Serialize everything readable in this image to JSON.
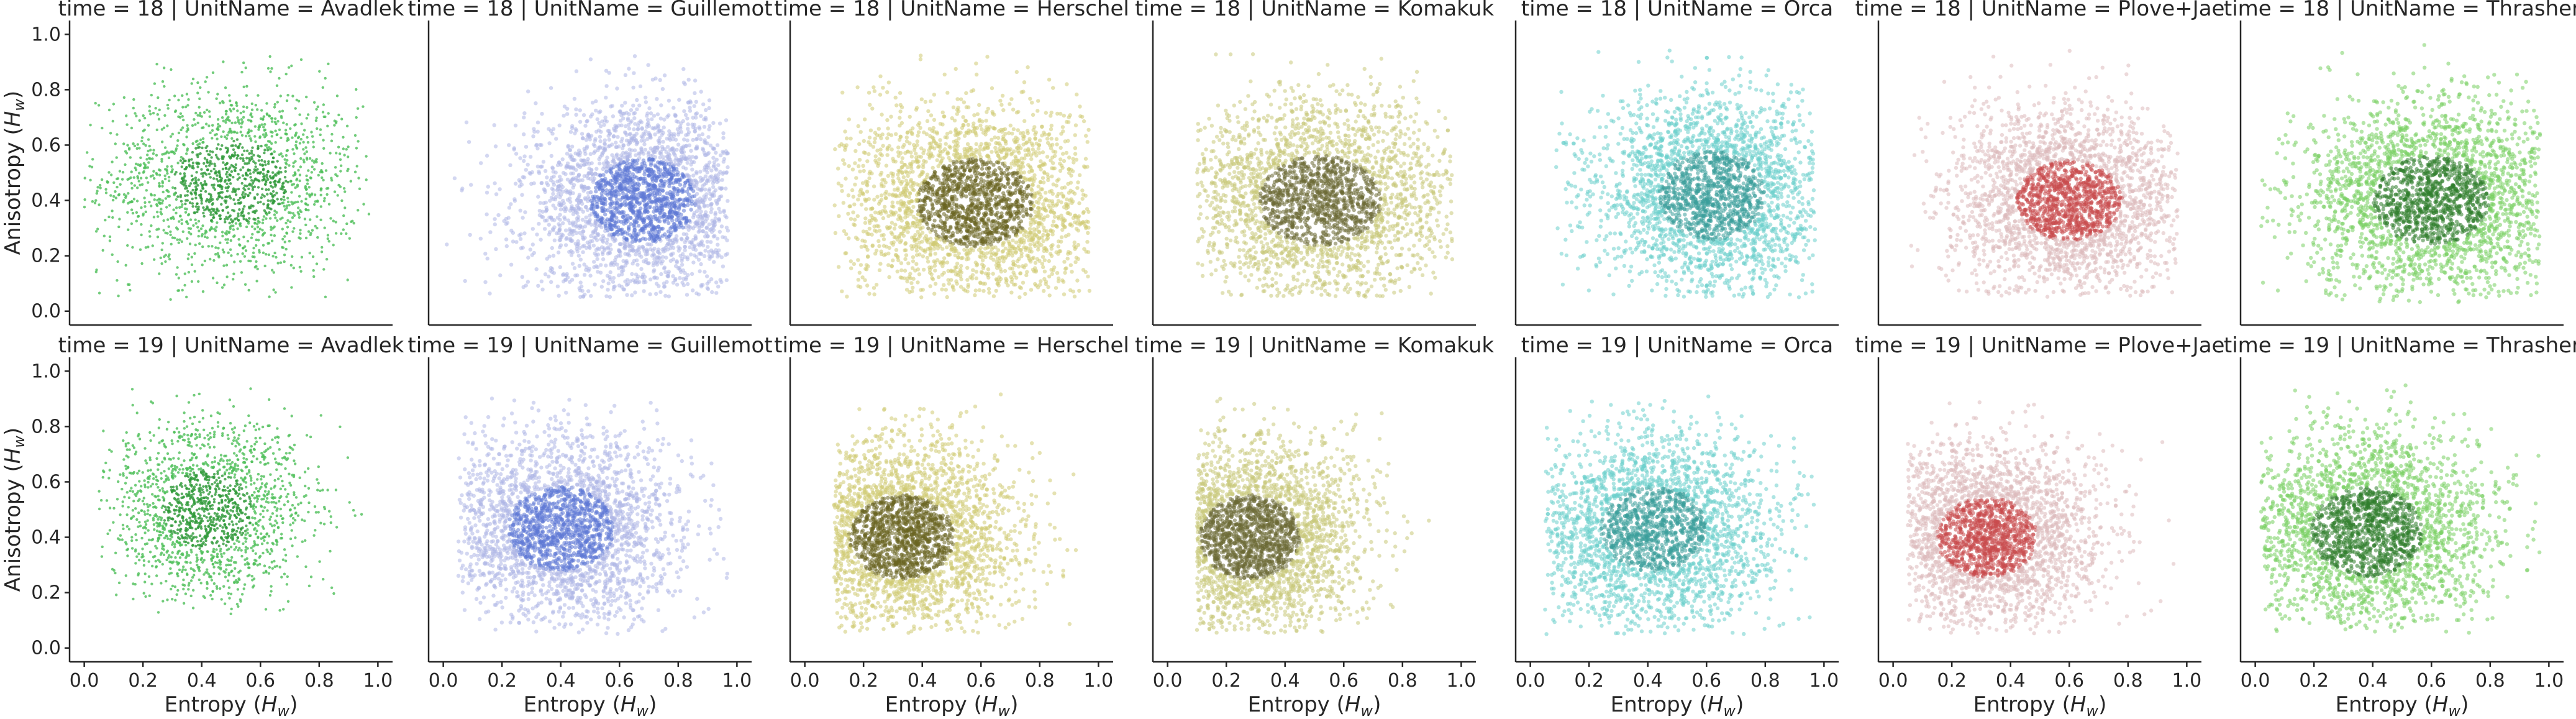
{
  "facet_grid": {
    "rows": [
      "time = 18",
      "time = 19"
    ],
    "columns": [
      "Avadlek",
      "Guillemot",
      "Herschel",
      "Komakuk",
      "Orca",
      "Plove+Jae",
      "Thrasher"
    ]
  },
  "chart_data": [
    {
      "type": "scatter",
      "title": "time = 18 | UnitName = Avadlek",
      "xlabel": "",
      "ylabel": "Anisotropy ($H_w$)",
      "xlim": [
        -0.05,
        1.05
      ],
      "ylim": [
        -0.05,
        1.05
      ],
      "xticks": [
        0.0,
        0.2,
        0.4,
        0.6,
        0.8,
        1.0
      ],
      "yticks": [
        0.0,
        0.2,
        0.4,
        0.6,
        0.8,
        1.0
      ],
      "x_tick_labels_visible": false,
      "y_tick_labels_visible": true,
      "color": "#4fbf5a",
      "dense_color": "#2f9a3a",
      "density": "sparse",
      "distribution": {
        "x_range": [
          0.0,
          0.97
        ],
        "y_range": [
          0.03,
          0.97
        ],
        "center": [
          0.5,
          0.47
        ],
        "spread": [
          0.22,
          0.17
        ]
      }
    },
    {
      "type": "scatter",
      "title": "time = 18 | UnitName = Guillemot",
      "xlabel": "",
      "ylabel": "",
      "xlim": [
        -0.05,
        1.05
      ],
      "ylim": [
        -0.05,
        1.05
      ],
      "xticks": [
        0.0,
        0.2,
        0.4,
        0.6,
        0.8,
        1.0
      ],
      "yticks": [
        0.0,
        0.2,
        0.4,
        0.6,
        0.8,
        1.0
      ],
      "x_tick_labels_visible": false,
      "y_tick_labels_visible": false,
      "color": "#aeb7e6",
      "dense_color": "#5f79d6",
      "density": "dense",
      "distribution": {
        "x_range": [
          0.0,
          0.97
        ],
        "y_range": [
          0.05,
          0.95
        ],
        "center": [
          0.68,
          0.4
        ],
        "spread": [
          0.2,
          0.17
        ]
      }
    },
    {
      "type": "scatter",
      "title": "time = 18 | UnitName = Herschel",
      "xlabel": "",
      "ylabel": "",
      "xlim": [
        -0.05,
        1.05
      ],
      "ylim": [
        -0.05,
        1.05
      ],
      "xticks": [
        0.0,
        0.2,
        0.4,
        0.6,
        0.8,
        1.0
      ],
      "yticks": [
        0.0,
        0.2,
        0.4,
        0.6,
        0.8,
        1.0
      ],
      "x_tick_labels_visible": false,
      "y_tick_labels_visible": false,
      "color": "#cfca72",
      "dense_color": "#6a6520",
      "density": "dense",
      "distribution": {
        "x_range": [
          0.1,
          0.97
        ],
        "y_range": [
          0.05,
          0.95
        ],
        "center": [
          0.58,
          0.39
        ],
        "spread": [
          0.22,
          0.18
        ]
      }
    },
    {
      "type": "scatter",
      "title": "time = 18 | UnitName = Komakuk",
      "xlabel": "",
      "ylabel": "",
      "xlim": [
        -0.05,
        1.05
      ],
      "ylim": [
        -0.05,
        1.05
      ],
      "xticks": [
        0.0,
        0.2,
        0.4,
        0.6,
        0.8,
        1.0
      ],
      "yticks": [
        0.0,
        0.2,
        0.4,
        0.6,
        0.8,
        1.0
      ],
      "x_tick_labels_visible": false,
      "y_tick_labels_visible": false,
      "color": "#c9c97a",
      "dense_color": "#6b6a35",
      "density": "dense",
      "distribution": {
        "x_range": [
          0.1,
          0.97
        ],
        "y_range": [
          0.05,
          0.95
        ],
        "center": [
          0.52,
          0.4
        ],
        "spread": [
          0.23,
          0.18
        ]
      }
    },
    {
      "type": "scatter",
      "title": "time = 18 | UnitName = Orca",
      "xlabel": "",
      "ylabel": "",
      "xlim": [
        -0.05,
        1.05
      ],
      "ylim": [
        -0.05,
        1.05
      ],
      "xticks": [
        0.0,
        0.2,
        0.4,
        0.6,
        0.8,
        1.0
      ],
      "yticks": [
        0.0,
        0.2,
        0.4,
        0.6,
        0.8,
        1.0
      ],
      "x_tick_labels_visible": false,
      "y_tick_labels_visible": false,
      "color": "#6ccfcc",
      "dense_color": "#3a9e9a",
      "density": "dense",
      "distribution": {
        "x_range": [
          0.05,
          0.97
        ],
        "y_range": [
          0.05,
          0.95
        ],
        "center": [
          0.62,
          0.42
        ],
        "spread": [
          0.2,
          0.18
        ]
      }
    },
    {
      "type": "scatter",
      "title": "time = 18 | UnitName = Plove+Jae",
      "xlabel": "",
      "ylabel": "",
      "xlim": [
        -0.05,
        1.05
      ],
      "ylim": [
        -0.05,
        1.05
      ],
      "xticks": [
        0.0,
        0.2,
        0.4,
        0.6,
        0.8,
        1.0
      ],
      "yticks": [
        0.0,
        0.2,
        0.4,
        0.6,
        0.8,
        1.0
      ],
      "x_tick_labels_visible": false,
      "y_tick_labels_visible": false,
      "color": "#dcb9bb",
      "dense_color": "#c94a4c",
      "density": "dense",
      "distribution": {
        "x_range": [
          0.05,
          0.97
        ],
        "y_range": [
          0.05,
          0.95
        ],
        "center": [
          0.6,
          0.4
        ],
        "spread": [
          0.2,
          0.16
        ]
      }
    },
    {
      "type": "scatter",
      "title": "time = 18 | UnitName = Thrasher",
      "xlabel": "",
      "ylabel": "",
      "xlim": [
        -0.05,
        1.05
      ],
      "ylim": [
        -0.05,
        1.05
      ],
      "xticks": [
        0.0,
        0.2,
        0.4,
        0.6,
        0.8,
        1.0
      ],
      "yticks": [
        0.0,
        0.2,
        0.4,
        0.6,
        0.8,
        1.0
      ],
      "x_tick_labels_visible": false,
      "y_tick_labels_visible": false,
      "color": "#79cf62",
      "dense_color": "#2f7d2c",
      "density": "dense",
      "distribution": {
        "x_range": [
          0.02,
          0.97
        ],
        "y_range": [
          0.03,
          0.98
        ],
        "center": [
          0.6,
          0.4
        ],
        "spread": [
          0.22,
          0.18
        ]
      }
    },
    {
      "type": "scatter",
      "title": "time = 19 | UnitName = Avadlek",
      "xlabel": "Entropy ($H_w$)",
      "ylabel": "Anisotropy ($H_w$)",
      "xlim": [
        -0.05,
        1.05
      ],
      "ylim": [
        -0.05,
        1.05
      ],
      "xticks": [
        0.0,
        0.2,
        0.4,
        0.6,
        0.8,
        1.0
      ],
      "yticks": [
        0.0,
        0.2,
        0.4,
        0.6,
        0.8,
        1.0
      ],
      "x_tick_labels_visible": true,
      "y_tick_labels_visible": true,
      "color": "#4fbf5a",
      "dense_color": "#2f9a3a",
      "density": "sparse",
      "distribution": {
        "x_range": [
          0.05,
          0.95
        ],
        "y_range": [
          0.12,
          0.97
        ],
        "center": [
          0.42,
          0.5
        ],
        "spread": [
          0.17,
          0.16
        ]
      }
    },
    {
      "type": "scatter",
      "title": "time = 19 | UnitName = Guillemot",
      "xlabel": "Entropy ($H_w$)",
      "ylabel": "",
      "xlim": [
        -0.05,
        1.05
      ],
      "ylim": [
        -0.05,
        1.05
      ],
      "xticks": [
        0.0,
        0.2,
        0.4,
        0.6,
        0.8,
        1.0
      ],
      "yticks": [
        0.0,
        0.2,
        0.4,
        0.6,
        0.8,
        1.0
      ],
      "x_tick_labels_visible": true,
      "y_tick_labels_visible": false,
      "color": "#aeb7e6",
      "dense_color": "#5f79d6",
      "density": "dense",
      "distribution": {
        "x_range": [
          0.05,
          0.97
        ],
        "y_range": [
          0.05,
          0.92
        ],
        "center": [
          0.4,
          0.43
        ],
        "spread": [
          0.2,
          0.17
        ]
      }
    },
    {
      "type": "scatter",
      "title": "time = 19 | UnitName = Herschel",
      "xlabel": "Entropy ($H_w$)",
      "ylabel": "",
      "xlim": [
        -0.05,
        1.05
      ],
      "ylim": [
        -0.05,
        1.05
      ],
      "xticks": [
        0.0,
        0.2,
        0.4,
        0.6,
        0.8,
        1.0
      ],
      "yticks": [
        0.0,
        0.2,
        0.4,
        0.6,
        0.8,
        1.0
      ],
      "x_tick_labels_visible": true,
      "y_tick_labels_visible": false,
      "color": "#cfca72",
      "dense_color": "#6a6520",
      "density": "dense",
      "distribution": {
        "x_range": [
          0.1,
          0.93
        ],
        "y_range": [
          0.05,
          0.92
        ],
        "center": [
          0.33,
          0.4
        ],
        "spread": [
          0.2,
          0.17
        ]
      }
    },
    {
      "type": "scatter",
      "title": "time = 19 | UnitName = Komakuk",
      "xlabel": "Entropy ($H_w$)",
      "ylabel": "",
      "xlim": [
        -0.05,
        1.05
      ],
      "ylim": [
        -0.05,
        1.05
      ],
      "xticks": [
        0.0,
        0.2,
        0.4,
        0.6,
        0.8,
        1.0
      ],
      "yticks": [
        0.0,
        0.2,
        0.4,
        0.6,
        0.8,
        1.0
      ],
      "x_tick_labels_visible": true,
      "y_tick_labels_visible": false,
      "color": "#c9c97a",
      "dense_color": "#6b6a35",
      "density": "dense",
      "distribution": {
        "x_range": [
          0.1,
          0.93
        ],
        "y_range": [
          0.05,
          0.92
        ],
        "center": [
          0.28,
          0.4
        ],
        "spread": [
          0.19,
          0.17
        ]
      }
    },
    {
      "type": "scatter",
      "title": "time = 19 | UnitName = Orca",
      "xlabel": "Entropy ($H_w$)",
      "ylabel": "",
      "xlim": [
        -0.05,
        1.05
      ],
      "ylim": [
        -0.05,
        1.05
      ],
      "xticks": [
        0.0,
        0.2,
        0.4,
        0.6,
        0.8,
        1.0
      ],
      "yticks": [
        0.0,
        0.2,
        0.4,
        0.6,
        0.8,
        1.0
      ],
      "x_tick_labels_visible": true,
      "y_tick_labels_visible": false,
      "color": "#6ccfcc",
      "dense_color": "#3a9e9a",
      "density": "dense",
      "distribution": {
        "x_range": [
          0.05,
          0.97
        ],
        "y_range": [
          0.05,
          0.92
        ],
        "center": [
          0.42,
          0.43
        ],
        "spread": [
          0.2,
          0.17
        ]
      }
    },
    {
      "type": "scatter",
      "title": "time = 19 | UnitName = Plove+Jae",
      "xlabel": "Entropy ($H_w$)",
      "ylabel": "",
      "xlim": [
        -0.05,
        1.05
      ],
      "ylim": [
        -0.05,
        1.05
      ],
      "xticks": [
        0.0,
        0.2,
        0.4,
        0.6,
        0.8,
        1.0
      ],
      "yticks": [
        0.0,
        0.2,
        0.4,
        0.6,
        0.8,
        1.0
      ],
      "x_tick_labels_visible": true,
      "y_tick_labels_visible": false,
      "color": "#dcb9bb",
      "dense_color": "#c94a4c",
      "density": "dense",
      "distribution": {
        "x_range": [
          0.05,
          0.97
        ],
        "y_range": [
          0.05,
          0.95
        ],
        "center": [
          0.32,
          0.4
        ],
        "spread": [
          0.19,
          0.16
        ]
      }
    },
    {
      "type": "scatter",
      "title": "time = 19 | UnitName = Thrasher",
      "xlabel": "Entropy ($H_w$)",
      "ylabel": "",
      "xlim": [
        -0.05,
        1.05
      ],
      "ylim": [
        -0.05,
        1.05
      ],
      "xticks": [
        0.0,
        0.2,
        0.4,
        0.6,
        0.8,
        1.0
      ],
      "yticks": [
        0.0,
        0.2,
        0.4,
        0.6,
        0.8,
        1.0
      ],
      "x_tick_labels_visible": true,
      "y_tick_labels_visible": false,
      "color": "#79cf62",
      "dense_color": "#2f7d2c",
      "density": "dense",
      "distribution": {
        "x_range": [
          0.02,
          0.97
        ],
        "y_range": [
          0.05,
          0.95
        ],
        "center": [
          0.38,
          0.42
        ],
        "spread": [
          0.21,
          0.18
        ]
      }
    }
  ]
}
